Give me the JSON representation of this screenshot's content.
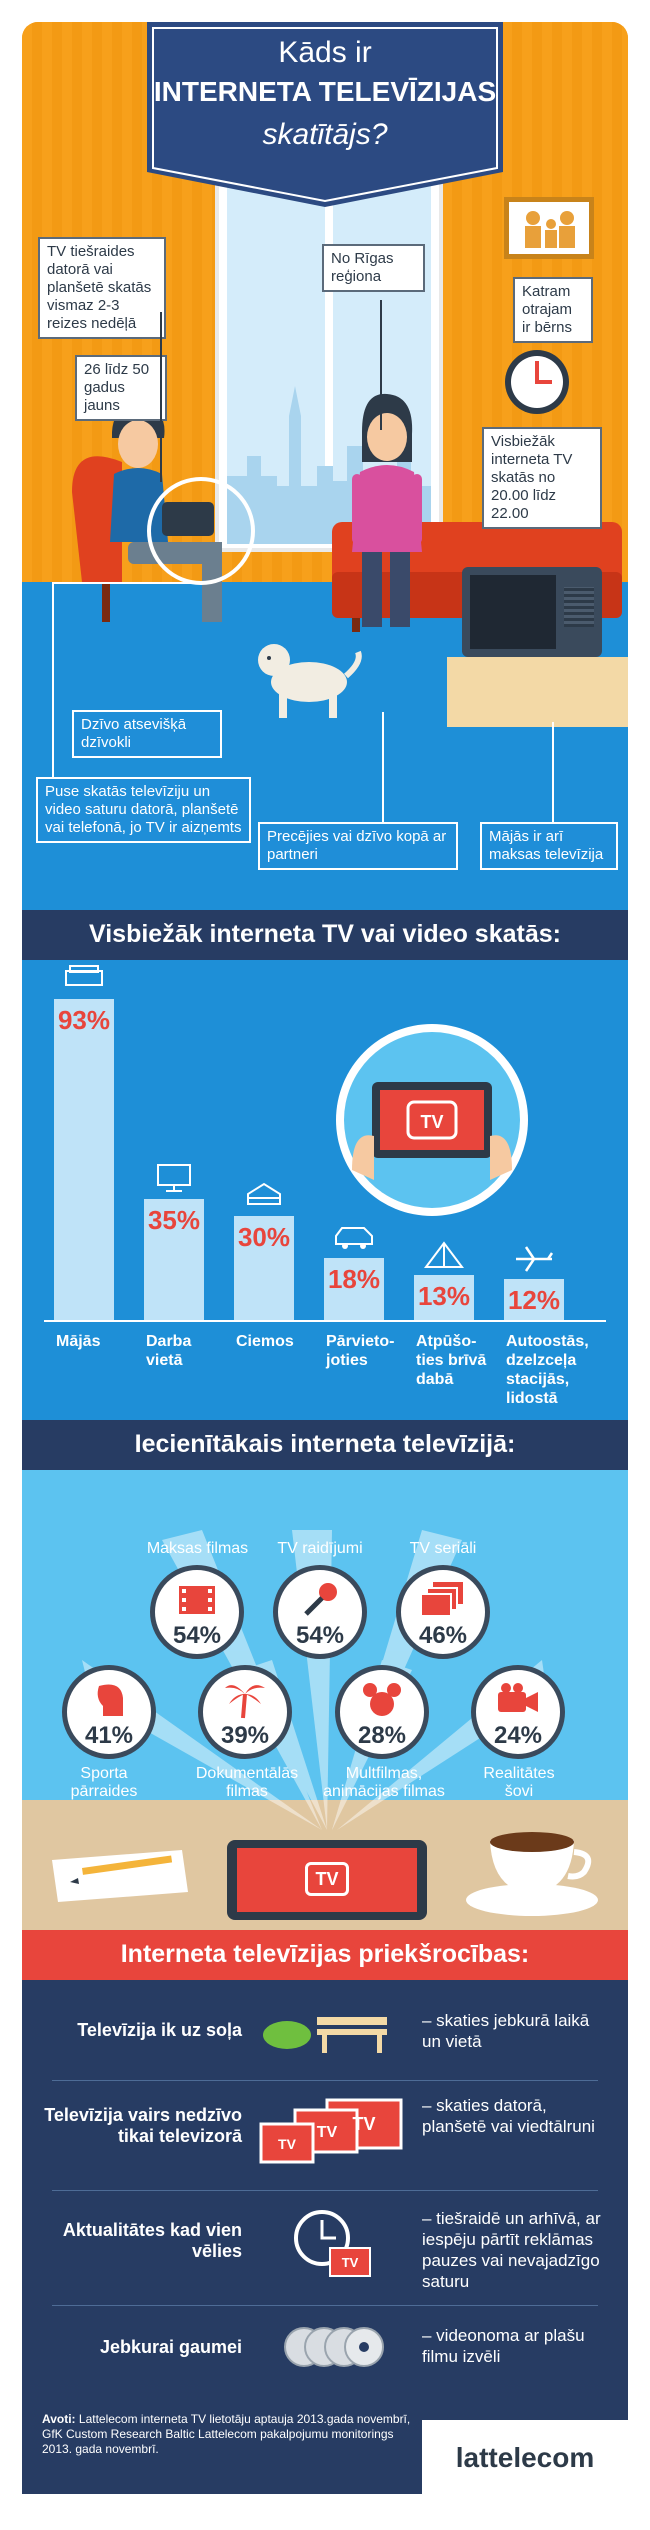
{
  "header": {
    "line1": "Kāds ir",
    "line2": "INTERNETA TELEVĪZIJAS",
    "line3": "skatītājs?"
  },
  "scene_labels": {
    "watch_freq": "TV tiešraides datorā vai planšetē skatās vismaz 2-3 reizes nedēļā",
    "age": "26 līdz 50 gadus jauns",
    "region": "No Rīgas reģiona",
    "child": "Katram otrajam ir bērns",
    "time": "Visbiežāk interneta TV skatās no 20.00 līdz 22.00",
    "apartment": "Dzīvo atsevišķā dzīvokli",
    "half_watch": "Puse skatās televīziju un video saturu datorā, planšetē vai telefonā, jo TV ir aizņemts",
    "partner": "Precējies vai dzīvo kopā ar partneri",
    "paytv": "Mājās ir arī maksas televīzija"
  },
  "section1": {
    "title": "Visbiežāk interneta TV vai video skatās:",
    "chart_data": {
      "type": "bar",
      "categories": [
        "Mājās",
        "Darba vietā",
        "Ciemos",
        "Pārvietojoties",
        "Atpūšoties brīvā dabā",
        "Autoostās, dzelzceļa stacijās, lidostā"
      ],
      "values": [
        93,
        35,
        30,
        18,
        13,
        12
      ],
      "ylim": [
        0,
        100
      ]
    },
    "labels": [
      {
        "line1": "Mājās",
        "line2": "",
        "line3": ""
      },
      {
        "line1": "Darba",
        "line2": "vietā",
        "line3": ""
      },
      {
        "line1": "Ciemos",
        "line2": "",
        "line3": ""
      },
      {
        "line1": "Pārvieto-",
        "line2": "joties",
        "line3": ""
      },
      {
        "line1": "Atpūšo-",
        "line2": "ties brīvā",
        "line3": "dabā"
      },
      {
        "line1": "Autoostās,",
        "line2": "dzelzceļa",
        "line3": "stacijās,",
        "line4": "lidostā"
      }
    ],
    "pct_labels": [
      "93%",
      "35%",
      "30%",
      "18%",
      "13%",
      "12%"
    ],
    "icons": [
      "sofa-icon",
      "monitor-icon",
      "cake-icon",
      "car-icon",
      "tent-icon",
      "plane-icon"
    ]
  },
  "section2": {
    "title": "Iecienītākais interneta televīzijā:",
    "items": [
      {
        "label": "Maksas filmas",
        "pct": "54%"
      },
      {
        "label": "TV raidījumi",
        "pct": "54%"
      },
      {
        "label": "TV seriāli",
        "pct": "46%"
      },
      {
        "label": "Sporta pārraides",
        "pct": "41%"
      },
      {
        "label": "Dokumentālās filmas",
        "pct": "39%"
      },
      {
        "label": "Multfilmas, animācijas filmas",
        "pct": "28%"
      },
      {
        "label": "Realitātes šovi",
        "pct": "24%"
      }
    ],
    "tv_badge": "TV"
  },
  "section3": {
    "title": "Interneta televīzijas priekšrocības:",
    "rows": [
      {
        "left": "Televīzija ik uz soļa",
        "right": "– skaties jebkurā laikā un vietā"
      },
      {
        "left": "Televīzija vairs nedzīvo tikai televizorā",
        "right": "– skaties datorā, planšetē vai viedtālruni"
      },
      {
        "left": "Aktualitātes kad vien vēlies",
        "right": "– tiešraidē un arhīvā, ar iespēju pārtīt reklāmas pauzes vai nevajadzīgo saturu"
      },
      {
        "left": "Jebkurai gaumei",
        "right": "– videonoma ar plašu filmu izvēli"
      }
    ],
    "tv_badge": "TV"
  },
  "footer": {
    "source_bold": "Avoti:",
    "source_text": " Lattelecom interneta TV lietotāju aptauja 2013.gada novembrī, GfK Custom Research Baltic Lattelecom pakalpojumu monitorings 2013. gada novembrī.",
    "logo": "lattelecom"
  },
  "colors": {
    "orange": "#f7a01b",
    "blue": "#1e8fd7",
    "light_blue": "#5cc3f0",
    "navy": "#273c63",
    "red": "#e8453c",
    "dark": "#2d3a48"
  }
}
